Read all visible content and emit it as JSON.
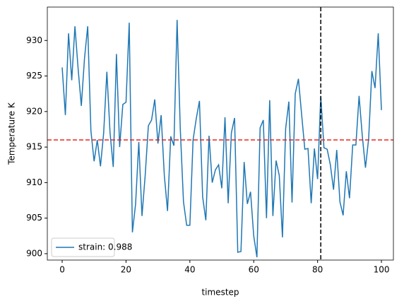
{
  "chart_data": {
    "type": "line",
    "xlabel": "timestep",
    "ylabel": "Temperature K",
    "x": [
      0,
      1,
      2,
      3,
      4,
      5,
      6,
      7,
      8,
      9,
      10,
      11,
      12,
      13,
      14,
      15,
      16,
      17,
      18,
      19,
      20,
      21,
      22,
      23,
      24,
      25,
      26,
      27,
      28,
      29,
      30,
      31,
      32,
      33,
      34,
      35,
      36,
      37,
      38,
      39,
      40,
      41,
      42,
      43,
      44,
      45,
      46,
      47,
      48,
      49,
      50,
      51,
      52,
      53,
      54,
      55,
      56,
      57,
      58,
      59,
      60,
      61,
      62,
      63,
      64,
      65,
      66,
      67,
      68,
      69,
      70,
      71,
      72,
      73,
      74,
      75,
      76,
      77,
      78,
      79,
      80,
      81,
      82,
      83,
      84,
      85,
      86,
      87,
      88,
      89,
      90,
      91,
      92,
      93,
      94,
      95,
      96,
      97,
      98,
      99,
      100
    ],
    "series": [
      {
        "name": "strain: 0.988",
        "color": "#1f77b4",
        "values": [
          926.2,
          919.5,
          931,
          924.4,
          932,
          926,
          920.8,
          927.5,
          932,
          917.3,
          913,
          916,
          912.3,
          917,
          925.6,
          917,
          912.2,
          928.1,
          915,
          921,
          921.3,
          932.5,
          903,
          907,
          915.7,
          905.3,
          911,
          918,
          918.8,
          921.7,
          915.5,
          919.5,
          911,
          906,
          916.5,
          915.2,
          932.9,
          917.5,
          907.3,
          904,
          904,
          916,
          919,
          921.5,
          908,
          904.7,
          916.6,
          910,
          911.8,
          912.5,
          909.2,
          919.2,
          907.1,
          917,
          919.1,
          900.2,
          900.3,
          912.9,
          907,
          908.7,
          902.5,
          899.5,
          917.7,
          918.8,
          905,
          921.6,
          905.3,
          913.1,
          911,
          902.3,
          917.6,
          921.4,
          907.2,
          922.5,
          924.6,
          919.6,
          914.7,
          914.8,
          907.1,
          914.8,
          910.5,
          922.2,
          914.9,
          914.7,
          912.5,
          909,
          914.6,
          907.3,
          905.4,
          911.6,
          907.8,
          915.3,
          915.3,
          922.2,
          916.6,
          912.1,
          916.2,
          925.7,
          923.3,
          931,
          920.2
        ]
      }
    ],
    "hlines": [
      {
        "y": 916,
        "color": "#e8271f"
      }
    ],
    "vlines": [
      {
        "x": 81,
        "color": "#000000"
      }
    ],
    "xlim": [
      -4.65,
      103.75
    ],
    "ylim": [
      899.1,
      934.7
    ],
    "xticks": [
      0,
      20,
      40,
      60,
      80,
      100
    ],
    "yticks": [
      900,
      905,
      910,
      915,
      920,
      925,
      930
    ],
    "legend": "lower left"
  }
}
